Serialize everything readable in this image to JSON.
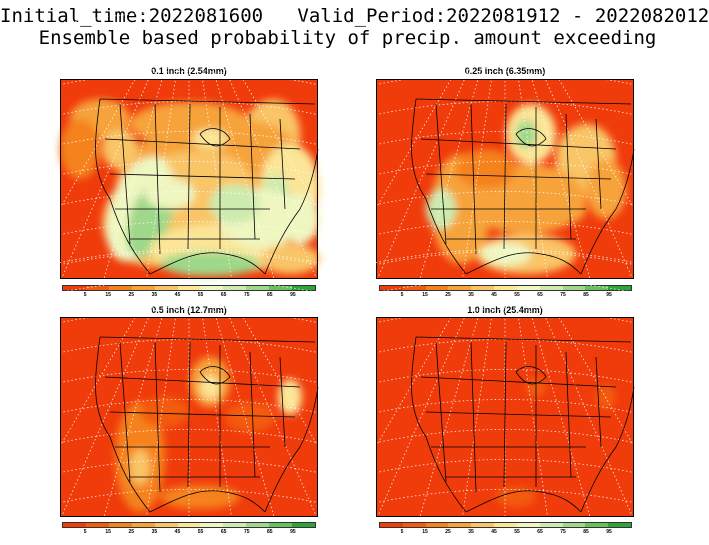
{
  "header": {
    "title": "Initial_time:2022081600   Valid_Period:2022081912 - 2022082012",
    "subtitle": "Ensemble based probability of precip. amount exceeding"
  },
  "panels": [
    {
      "title": "0.1 inch (2.54mm)"
    },
    {
      "title": "0.25 inch (6.35mm)"
    },
    {
      "title": "0.5 inch (12.7mm)"
    },
    {
      "title": "1.0 inch (25.4mm)"
    }
  ],
  "colorbar": {
    "colors": [
      "#f03b0b",
      "#f35c0e",
      "#f5821a",
      "#f7a33a",
      "#f9c566",
      "#fbe596",
      "#eff6c0",
      "#cdebae",
      "#9fd88a",
      "#66c25a",
      "#2ea338"
    ],
    "tick_labels": [
      "5",
      "15",
      "25",
      "35",
      "45",
      "55",
      "65",
      "75",
      "85",
      "95"
    ]
  }
}
